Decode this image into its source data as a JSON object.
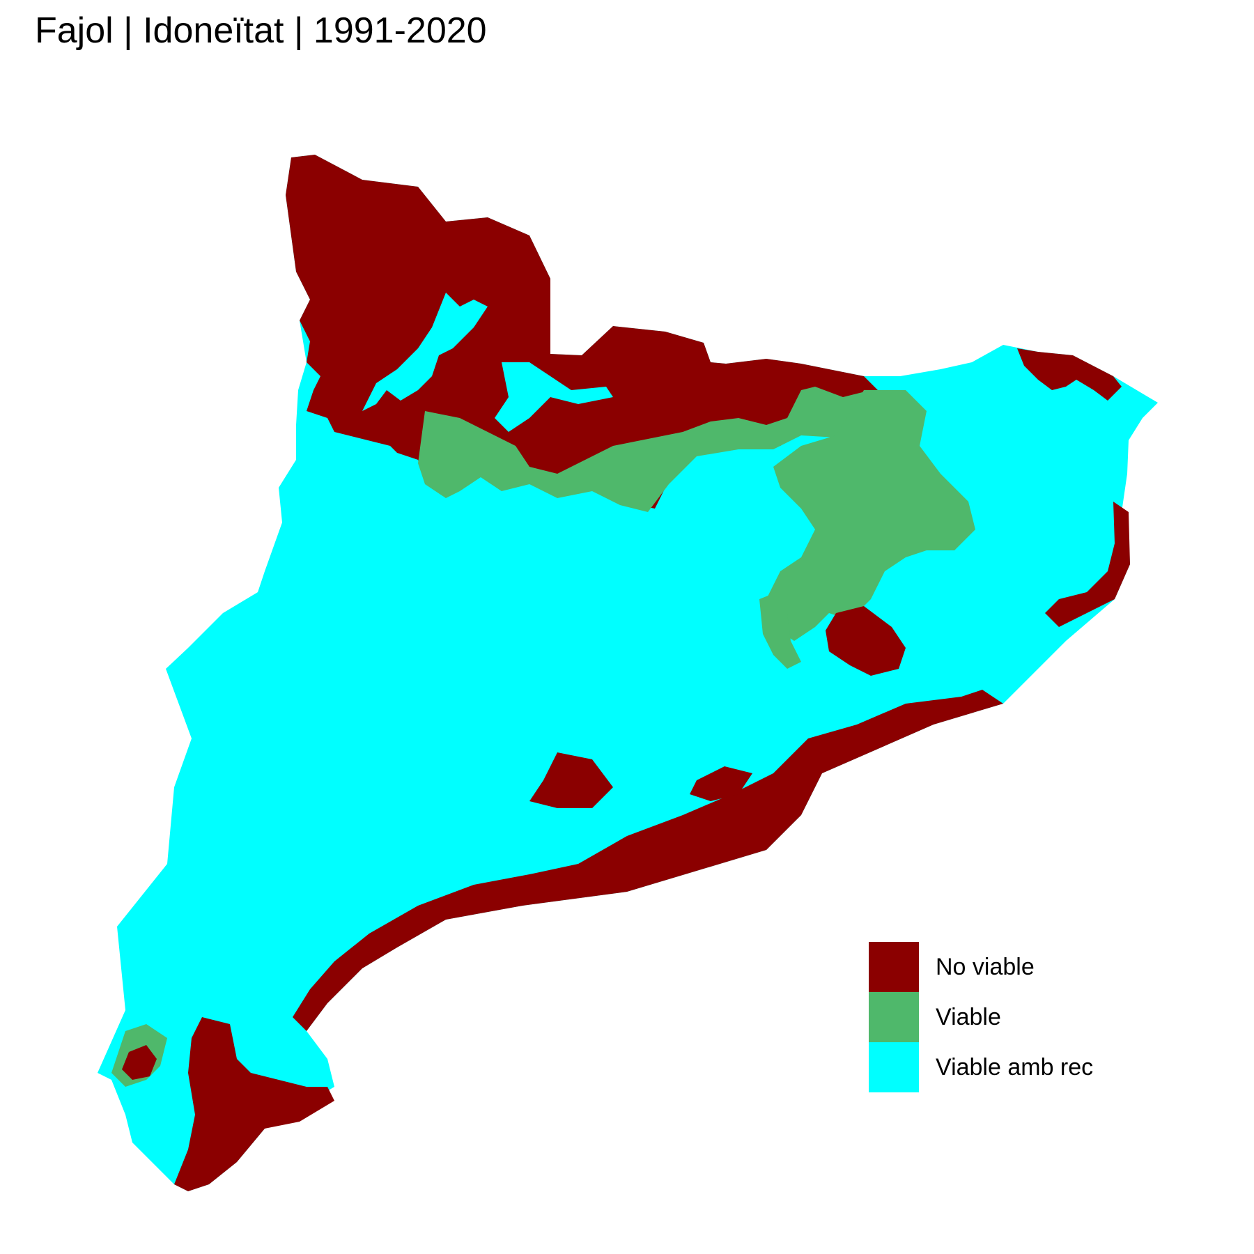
{
  "title": "Fajol | Idoneïtat | 1991-2020",
  "colors": {
    "no_viable": "#8B0000",
    "viable": "#4FB86B",
    "viable_amb_rec": "#00FFFF"
  },
  "legend": {
    "items": [
      {
        "label": "No viable",
        "color": "#8B0000"
      },
      {
        "label": "Viable",
        "color": "#4FB86B"
      },
      {
        "label": "Viable amb rec",
        "color": "#00FFFF"
      }
    ]
  }
}
